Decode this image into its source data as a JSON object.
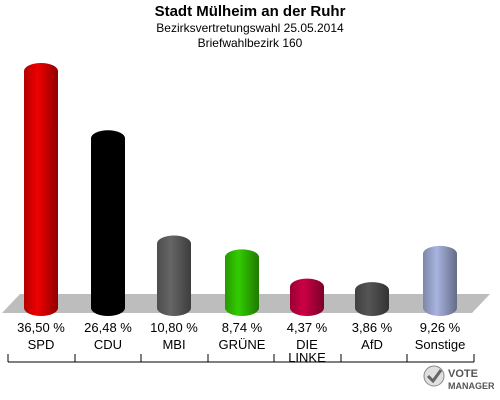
{
  "chart_data": {
    "type": "bar",
    "title": "Stadt Mülheim an der Ruhr",
    "subtitle": "Bezirksvertretungswahl 25.05.2014",
    "subtitle2": "Briefwahlbezirk 160",
    "categories": [
      "SPD",
      "CDU",
      "MBI",
      "GRÜNE",
      "DIE LINKE",
      "AfD",
      "Sonstige"
    ],
    "category_lines": [
      [
        "SPD"
      ],
      [
        "CDU"
      ],
      [
        "MBI"
      ],
      [
        "GRÜNE"
      ],
      [
        "DIE",
        "LINKE"
      ],
      [
        "AfD"
      ],
      [
        "Sonstige"
      ]
    ],
    "values": [
      36.5,
      26.48,
      10.8,
      8.74,
      4.37,
      3.86,
      9.26
    ],
    "value_labels": [
      "36,50 %",
      "26,48 %",
      "10,80 %",
      "8,74 %",
      "4,37 %",
      "3,86 %",
      "9,26 %"
    ],
    "colors": [
      "#ee0000",
      "#000000",
      "#666666",
      "#33cc00",
      "#cc0044",
      "#555555",
      "#a8b4e0"
    ],
    "ylim": [
      0,
      36.5
    ],
    "grid": false,
    "legend": "none"
  },
  "logo": {
    "line1": "VOTE",
    "line2": "MANAGER"
  }
}
